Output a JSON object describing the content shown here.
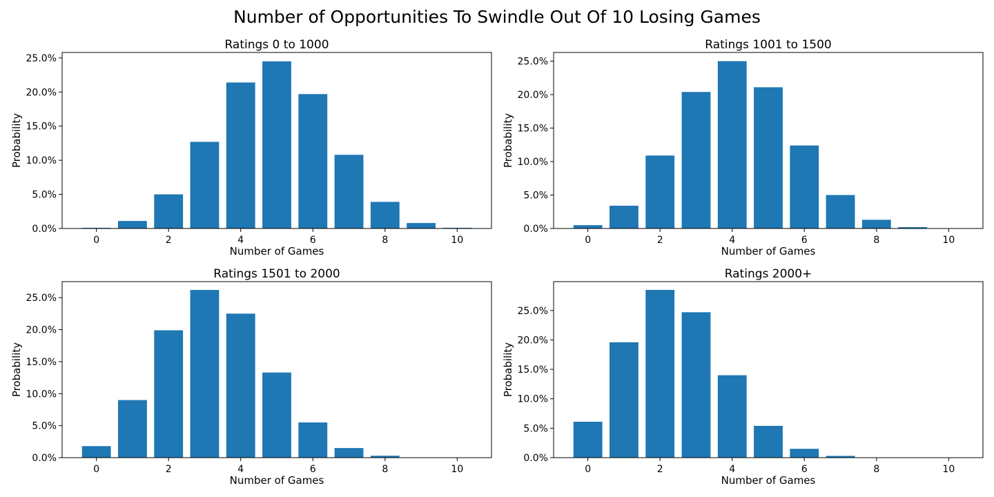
{
  "figure": {
    "suptitle": "Number of Opportunities To Swindle Out Of 10 Losing Games"
  },
  "chart_data": [
    {
      "type": "bar",
      "title": "Ratings 0 to 1000",
      "xlabel": "Number of Games",
      "ylabel": "Probability",
      "x": [
        0,
        1,
        2,
        3,
        4,
        5,
        6,
        7,
        8,
        9,
        10
      ],
      "values": [
        0.1,
        1.1,
        5.0,
        12.7,
        21.4,
        24.5,
        19.7,
        10.8,
        3.9,
        0.8,
        0.1
      ],
      "xticks": [
        0,
        2,
        4,
        6,
        8,
        10
      ],
      "xtick_labels": [
        "0",
        "2",
        "4",
        "6",
        "8",
        "10"
      ],
      "yticks": [
        0,
        5,
        10,
        15,
        20,
        25
      ],
      "ytick_labels": [
        "0.0%",
        "5.0%",
        "10.0%",
        "15.0%",
        "20.0%",
        "25.0%"
      ],
      "xlim": [
        -0.95,
        10.95
      ],
      "ylim": [
        0,
        25.8
      ],
      "grid": false,
      "color": "#1f77b4"
    },
    {
      "type": "bar",
      "title": "Ratings 1001 to 1500",
      "xlabel": "Number of Games",
      "ylabel": "Probability",
      "x": [
        0,
        1,
        2,
        3,
        4,
        5,
        6,
        7,
        8,
        9,
        10
      ],
      "values": [
        0.5,
        3.4,
        10.9,
        20.4,
        25.0,
        21.1,
        12.4,
        5.0,
        1.3,
        0.2,
        0.0
      ],
      "xticks": [
        0,
        2,
        4,
        6,
        8,
        10
      ],
      "xtick_labels": [
        "0",
        "2",
        "4",
        "6",
        "8",
        "10"
      ],
      "yticks": [
        0,
        5,
        10,
        15,
        20,
        25
      ],
      "ytick_labels": [
        "0.0%",
        "5.0%",
        "10.0%",
        "15.0%",
        "20.0%",
        "25.0%"
      ],
      "xlim": [
        -0.95,
        10.95
      ],
      "ylim": [
        0,
        26.3
      ],
      "grid": false,
      "color": "#1f77b4"
    },
    {
      "type": "bar",
      "title": "Ratings 1501 to 2000",
      "xlabel": "Number of Games",
      "ylabel": "Probability",
      "x": [
        0,
        1,
        2,
        3,
        4,
        5,
        6,
        7,
        8,
        9,
        10
      ],
      "values": [
        1.8,
        9.0,
        19.9,
        26.2,
        22.5,
        13.3,
        5.5,
        1.5,
        0.3,
        0.0,
        0.0
      ],
      "xticks": [
        0,
        2,
        4,
        6,
        8,
        10
      ],
      "xtick_labels": [
        "0",
        "2",
        "4",
        "6",
        "8",
        "10"
      ],
      "yticks": [
        0,
        5,
        10,
        15,
        20,
        25
      ],
      "ytick_labels": [
        "0.0%",
        "5.0%",
        "10.0%",
        "15.0%",
        "20.0%",
        "25.0%"
      ],
      "xlim": [
        -0.95,
        10.95
      ],
      "ylim": [
        0,
        27.5
      ],
      "grid": false,
      "color": "#1f77b4"
    },
    {
      "type": "bar",
      "title": "Ratings 2000+",
      "xlabel": "Number of Games",
      "ylabel": "Probability",
      "x": [
        0,
        1,
        2,
        3,
        4,
        5,
        6,
        7,
        8,
        9,
        10
      ],
      "values": [
        6.1,
        19.6,
        28.5,
        24.7,
        14.0,
        5.4,
        1.5,
        0.3,
        0.0,
        0.0,
        0.0
      ],
      "xticks": [
        0,
        2,
        4,
        6,
        8,
        10
      ],
      "xtick_labels": [
        "0",
        "2",
        "4",
        "6",
        "8",
        "10"
      ],
      "yticks": [
        0,
        5,
        10,
        15,
        20,
        25
      ],
      "ytick_labels": [
        "0.0%",
        "5.0%",
        "10.0%",
        "15.0%",
        "20.0%",
        "25.0%"
      ],
      "xlim": [
        -0.95,
        10.95
      ],
      "ylim": [
        0,
        29.9
      ],
      "grid": false,
      "color": "#1f77b4"
    }
  ]
}
